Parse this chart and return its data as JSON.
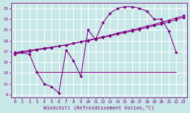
{
  "background_color": "#c8e8e8",
  "grid_color": "#ffffff",
  "line_color": "#800080",
  "xlabel": "Windchill (Refroidissement éolien,°C)",
  "xlim": [
    -0.5,
    23.5
  ],
  "ylim": [
    8.5,
    26.0
  ],
  "yticks": [
    9,
    11,
    13,
    15,
    17,
    19,
    21,
    23,
    25
  ],
  "xticks": [
    0,
    1,
    2,
    3,
    4,
    5,
    6,
    7,
    8,
    9,
    10,
    11,
    12,
    13,
    14,
    15,
    16,
    17,
    18,
    19,
    20,
    21,
    22,
    23
  ],
  "series1_x": [
    0,
    1,
    2,
    3,
    4,
    5,
    6,
    7,
    8,
    9,
    10,
    11,
    12,
    13,
    14,
    15,
    16,
    17,
    18,
    19,
    20,
    21,
    22
  ],
  "series1_y": [
    16.7,
    16.8,
    16.5,
    13.2,
    11.0,
    10.5,
    9.3,
    17.3,
    15.3,
    12.4,
    21.0,
    19.2,
    22.3,
    24.1,
    25.0,
    25.3,
    25.3,
    25.0,
    24.5,
    23.0,
    23.0,
    20.8,
    16.9
  ],
  "series2_x": [
    0,
    1,
    2,
    3,
    4,
    5,
    6,
    7,
    8,
    9,
    10,
    11,
    12,
    13,
    14,
    15,
    16,
    17,
    18,
    19,
    20,
    21,
    22,
    23
  ],
  "series2_y": [
    16.8,
    17.0,
    17.2,
    17.4,
    17.6,
    17.8,
    18.0,
    18.2,
    18.5,
    18.8,
    19.1,
    19.4,
    19.7,
    20.0,
    20.4,
    20.7,
    21.0,
    21.3,
    21.7,
    22.0,
    22.4,
    22.8,
    23.2,
    23.6
  ],
  "series3_x": [
    0,
    1,
    2,
    3,
    4,
    5,
    6,
    7,
    8,
    9,
    10,
    11,
    12,
    13,
    14,
    15,
    16,
    17,
    18,
    19,
    20,
    21,
    22,
    23
  ],
  "series3_y": [
    16.5,
    16.8,
    17.0,
    17.3,
    17.5,
    17.7,
    18.0,
    18.2,
    18.5,
    18.8,
    19.0,
    19.3,
    19.6,
    19.9,
    20.2,
    20.5,
    20.8,
    21.1,
    21.4,
    21.8,
    22.1,
    22.5,
    22.9,
    23.3
  ],
  "series4_x": [
    3,
    22
  ],
  "series4_y": [
    13.2,
    13.2
  ],
  "markersize": 2.0,
  "linewidth": 0.8
}
